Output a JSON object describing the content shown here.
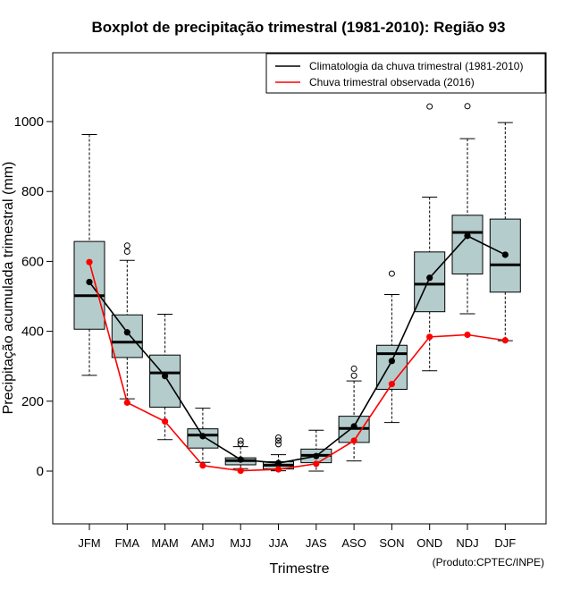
{
  "chart_data": {
    "type": "boxplot",
    "title": "Boxplot de precipitação trimestral (1981-2010): Região 93",
    "xlabel": "Trimestre",
    "ylabel": "Precipitação acumulada trimestral (mm)",
    "credit": "(Produto:CPTEC/INPE)",
    "ylim": [
      -150,
      1140
    ],
    "yticks": [
      0,
      200,
      400,
      600,
      800,
      1000
    ],
    "categories": [
      "JFM",
      "FMA",
      "MAM",
      "AMJ",
      "MJJ",
      "JJA",
      "JAS",
      "ASO",
      "SON",
      "OND",
      "NDJ",
      "DJF"
    ],
    "boxes": [
      {
        "low": 274,
        "q1": 406,
        "median": 502,
        "q3": 657,
        "high": 963,
        "outliers": []
      },
      {
        "low": 207,
        "q1": 325,
        "median": 369,
        "q3": 447,
        "high": 603,
        "outliers": [
          628,
          645
        ]
      },
      {
        "low": 90,
        "q1": 183,
        "median": 281,
        "q3": 332,
        "high": 449,
        "outliers": []
      },
      {
        "low": 25,
        "q1": 66,
        "median": 103,
        "q3": 121,
        "high": 180,
        "outliers": []
      },
      {
        "low": 7,
        "q1": 18,
        "median": 30,
        "q3": 38,
        "high": 70,
        "outliers": [
          78,
          87
        ]
      },
      {
        "low": 1,
        "q1": 6,
        "median": 17,
        "q3": 27,
        "high": 47,
        "outliers": [
          77,
          87,
          96
        ]
      },
      {
        "low": 0,
        "q1": 24,
        "median": 45,
        "q3": 63,
        "high": 117,
        "outliers": []
      },
      {
        "low": 29,
        "q1": 82,
        "median": 122,
        "q3": 157,
        "high": 258,
        "outliers": [
          273,
          293
        ]
      },
      {
        "low": 139,
        "q1": 234,
        "median": 336,
        "q3": 360,
        "high": 505,
        "outliers": [
          565
        ]
      },
      {
        "low": 287,
        "q1": 456,
        "median": 535,
        "q3": 627,
        "high": 784,
        "outliers": [
          1043
        ]
      },
      {
        "low": 450,
        "q1": 564,
        "median": 683,
        "q3": 732,
        "high": 951,
        "outliers": [
          1044
        ]
      },
      {
        "low": 373,
        "q1": 512,
        "median": 590,
        "q3": 721,
        "high": 997,
        "outliers": []
      }
    ],
    "series": [
      {
        "name": "Climatologia da chuva trimestral (1981-2010)",
        "color": "#000000",
        "values": [
          541,
          397,
          272,
          100,
          33,
          23,
          43,
          128,
          315,
          553,
          673,
          619
        ]
      },
      {
        "name": "Chuva trimestral observada (2016)",
        "color": "#ff0000",
        "values": [
          598,
          196,
          142,
          16,
          1,
          5,
          21,
          87,
          249,
          384,
          390,
          374
        ]
      }
    ],
    "legend_position": "top-right",
    "box_fill": "#b4cccc"
  }
}
